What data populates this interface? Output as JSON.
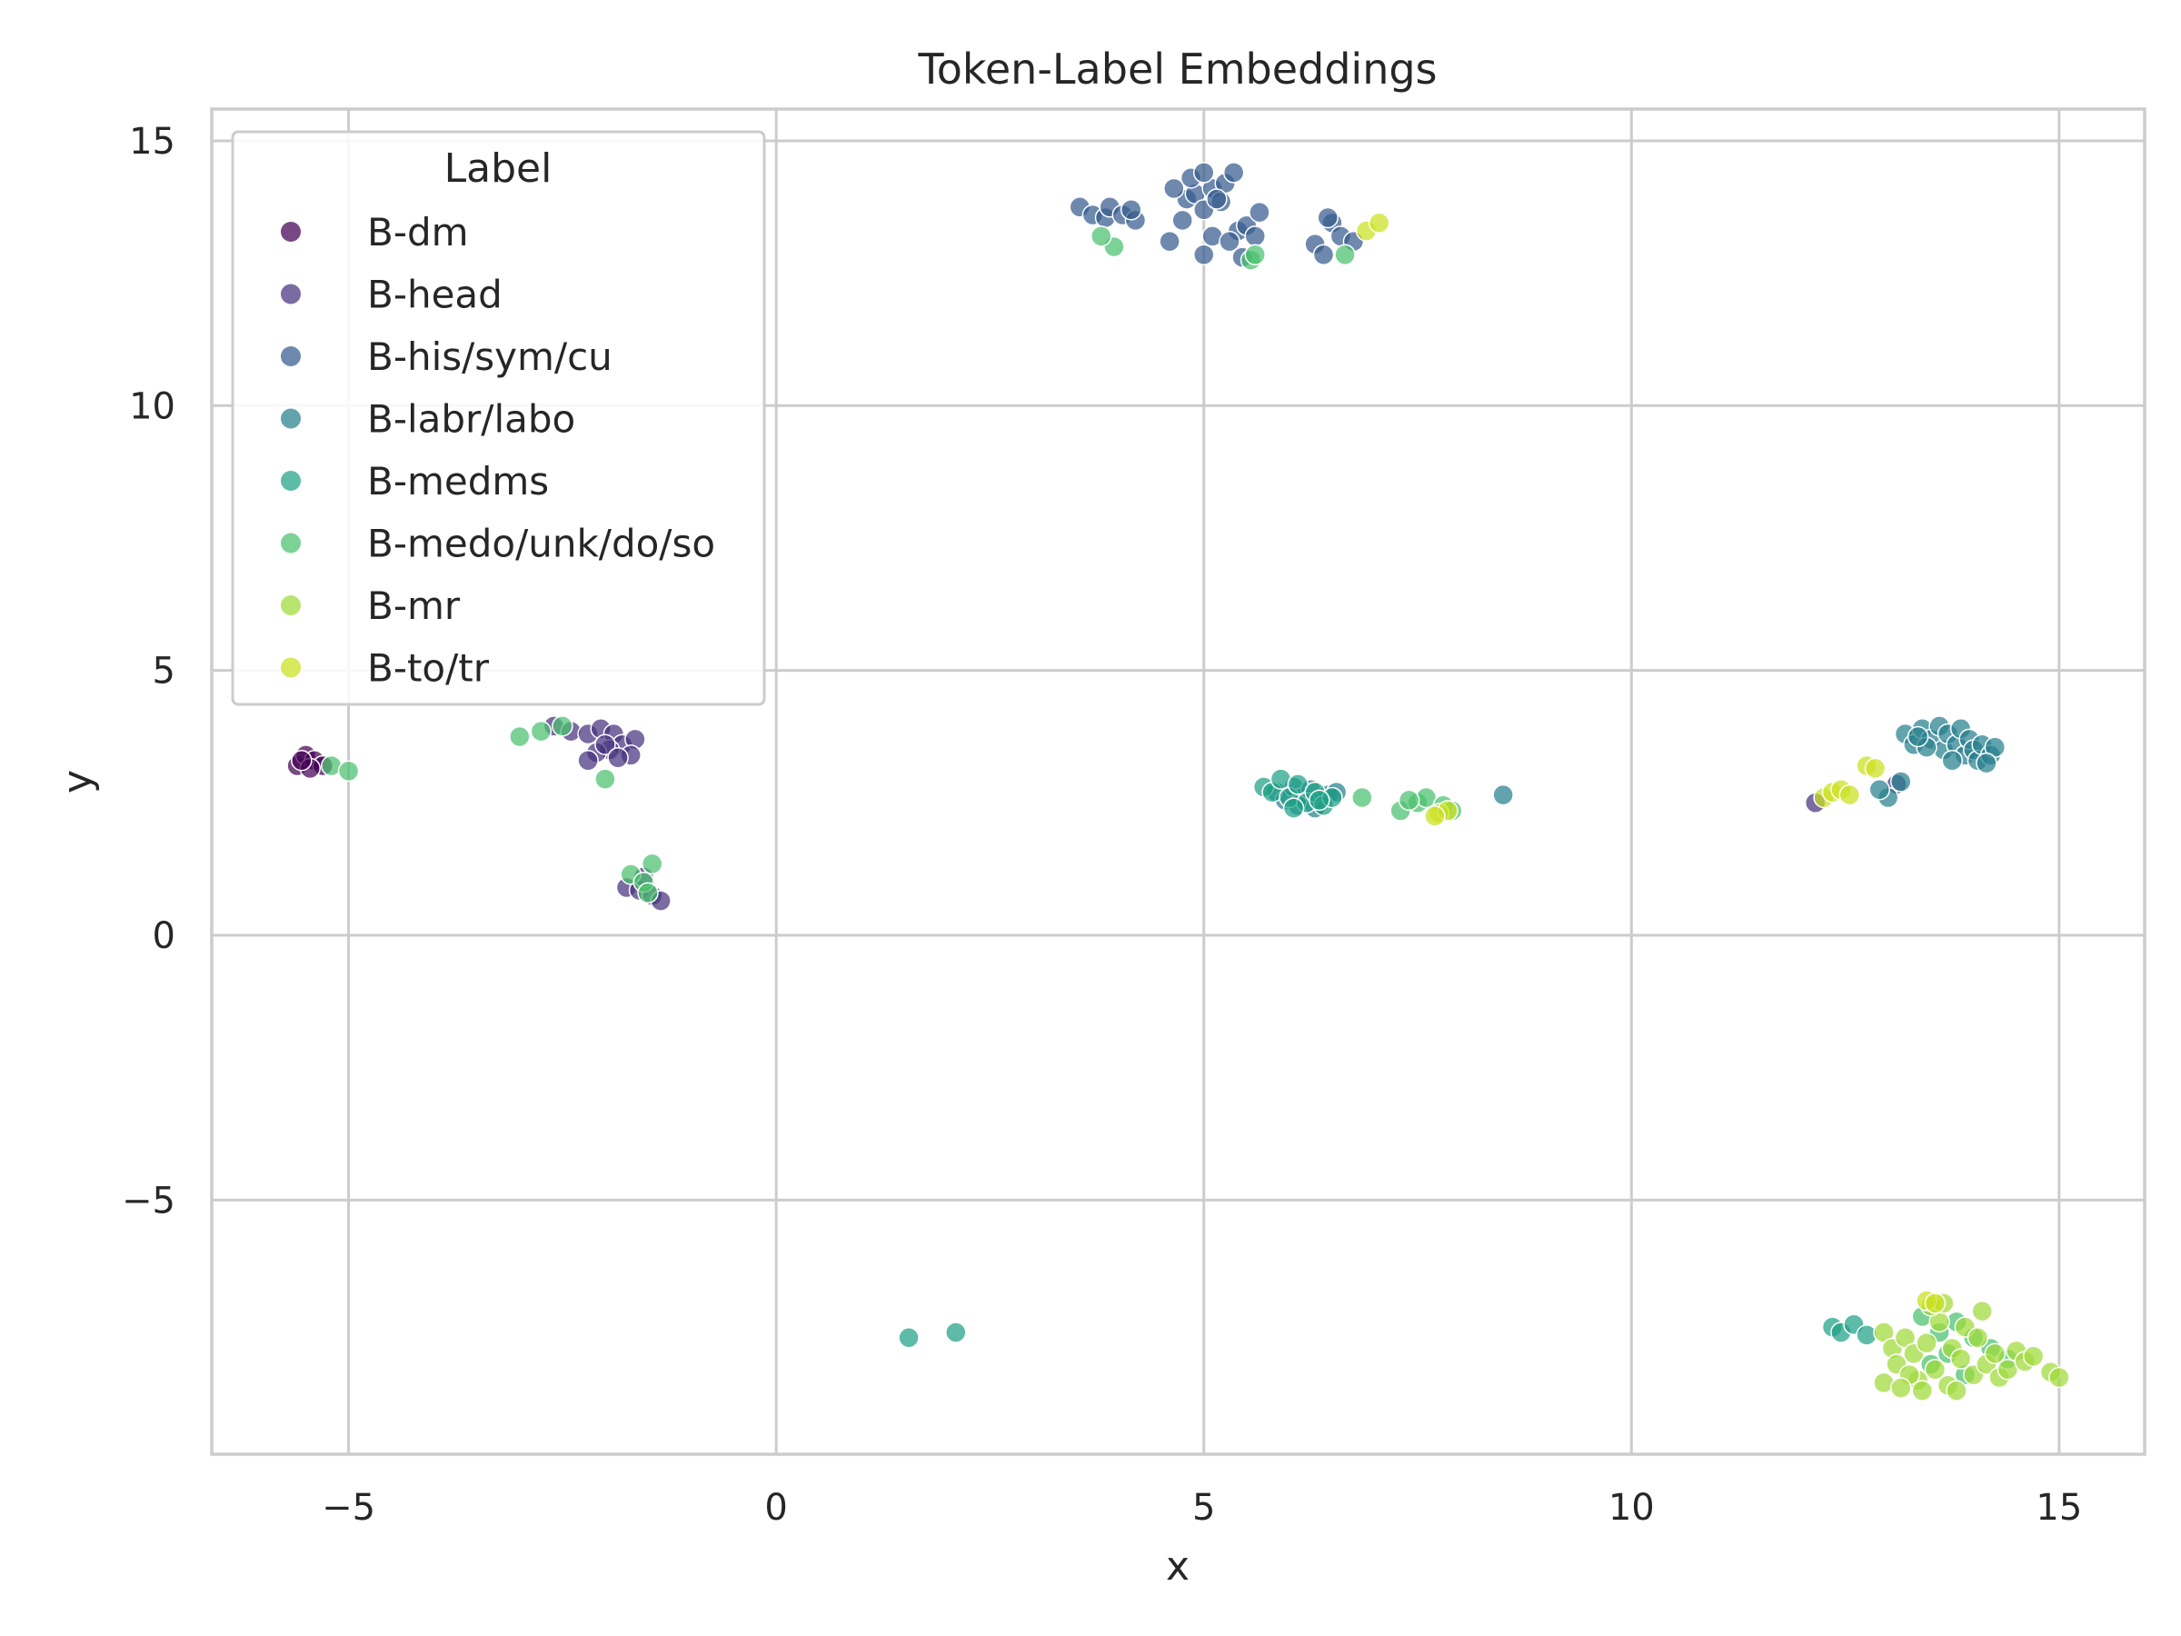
{
  "chart_data": {
    "type": "scatter",
    "title": "Token-Label Embeddings",
    "xlabel": "x",
    "ylabel": "y",
    "xlim": [
      -6.6,
      16.0
    ],
    "ylim": [
      -9.8,
      15.6
    ],
    "xticks": [
      -5,
      0,
      5,
      10,
      15
    ],
    "yticks": [
      -5,
      0,
      5,
      10,
      15
    ],
    "xtick_labels": [
      "−5",
      "0",
      "5",
      "10",
      "15"
    ],
    "ytick_labels": [
      "−5",
      "0",
      "5",
      "10",
      "15"
    ],
    "grid": true,
    "legend": {
      "title": "Label",
      "placement": "top-left"
    },
    "series": [
      {
        "name": "B-dm",
        "color": "#440154",
        "points": [
          [
            -5.6,
            3.2
          ],
          [
            -5.5,
            3.4
          ],
          [
            -5.4,
            3.3
          ],
          [
            -5.3,
            3.2
          ],
          [
            -5.45,
            3.15
          ],
          [
            -5.55,
            3.3
          ]
        ]
      },
      {
        "name": "B-head",
        "color": "#46327e",
        "points": [
          [
            -2.6,
            3.95
          ],
          [
            -2.4,
            3.85
          ],
          [
            -2.2,
            3.8
          ],
          [
            -2.05,
            3.9
          ],
          [
            -1.9,
            3.8
          ],
          [
            -1.8,
            3.6
          ],
          [
            -1.65,
            3.7
          ],
          [
            -1.7,
            3.4
          ],
          [
            -1.95,
            3.5
          ],
          [
            -2.1,
            3.45
          ],
          [
            -2.2,
            3.3
          ],
          [
            -2.0,
            3.6
          ],
          [
            -1.85,
            3.35
          ],
          [
            -1.75,
            0.9
          ],
          [
            -1.6,
            0.85
          ],
          [
            -1.45,
            0.75
          ],
          [
            -1.35,
            0.65
          ],
          [
            -1.55,
            1.1
          ],
          [
            12.15,
            2.5
          ],
          [
            13.1,
            2.85
          ]
        ]
      },
      {
        "name": "B-his/sym/cu",
        "color": "#365c8d",
        "points": [
          [
            3.55,
            13.75
          ],
          [
            3.7,
            13.6
          ],
          [
            3.85,
            13.55
          ],
          [
            3.9,
            13.75
          ],
          [
            4.05,
            13.6
          ],
          [
            4.2,
            13.5
          ],
          [
            4.15,
            13.7
          ],
          [
            4.6,
            13.1
          ],
          [
            4.75,
            13.5
          ],
          [
            4.8,
            13.9
          ],
          [
            4.9,
            14.0
          ],
          [
            5.0,
            13.7
          ],
          [
            5.1,
            14.1
          ],
          [
            5.2,
            13.85
          ],
          [
            5.25,
            14.2
          ],
          [
            5.35,
            14.4
          ],
          [
            5.4,
            13.3
          ],
          [
            5.5,
            13.4
          ],
          [
            5.6,
            13.2
          ],
          [
            5.65,
            13.65
          ],
          [
            5.0,
            12.85
          ],
          [
            5.1,
            13.2
          ],
          [
            5.3,
            13.1
          ],
          [
            5.45,
            12.8
          ],
          [
            4.65,
            14.1
          ],
          [
            4.85,
            14.3
          ],
          [
            5.0,
            14.4
          ],
          [
            5.15,
            13.9
          ],
          [
            6.3,
            13.05
          ],
          [
            6.4,
            12.85
          ],
          [
            6.5,
            13.45
          ],
          [
            6.6,
            13.2
          ],
          [
            6.75,
            13.1
          ],
          [
            6.45,
            13.55
          ]
        ]
      },
      {
        "name": "B-labr/labo",
        "color": "#277f8e",
        "points": [
          [
            13.2,
            3.8
          ],
          [
            13.3,
            3.6
          ],
          [
            13.4,
            3.9
          ],
          [
            13.5,
            3.7
          ],
          [
            13.6,
            3.95
          ],
          [
            13.65,
            3.5
          ],
          [
            13.7,
            3.8
          ],
          [
            13.8,
            3.6
          ],
          [
            13.85,
            3.9
          ],
          [
            13.9,
            3.4
          ],
          [
            13.95,
            3.7
          ],
          [
            14.0,
            3.5
          ],
          [
            14.05,
            3.3
          ],
          [
            14.1,
            3.6
          ],
          [
            14.2,
            3.4
          ],
          [
            14.25,
            3.55
          ],
          [
            13.45,
            3.55
          ],
          [
            13.35,
            3.75
          ],
          [
            13.75,
            3.3
          ],
          [
            14.15,
            3.25
          ],
          [
            13.0,
            2.6
          ],
          [
            12.9,
            2.75
          ],
          [
            13.15,
            2.9
          ],
          [
            8.5,
            2.65
          ],
          [
            5.85,
            2.7
          ],
          [
            5.95,
            2.55
          ],
          [
            6.05,
            2.8
          ],
          [
            6.15,
            2.6
          ],
          [
            6.25,
            2.75
          ],
          [
            6.35,
            2.5
          ],
          [
            6.45,
            2.65
          ],
          [
            6.55,
            2.7
          ],
          [
            6.1,
            2.45
          ],
          [
            6.3,
            2.4
          ]
        ]
      },
      {
        "name": "B-medms",
        "color": "#1fa187",
        "points": [
          [
            5.7,
            2.8
          ],
          [
            5.8,
            2.7
          ],
          [
            5.9,
            2.95
          ],
          [
            6.0,
            2.6
          ],
          [
            6.1,
            2.85
          ],
          [
            6.2,
            2.5
          ],
          [
            6.3,
            2.7
          ],
          [
            6.4,
            2.45
          ],
          [
            6.5,
            2.6
          ],
          [
            6.05,
            2.4
          ],
          [
            6.35,
            2.55
          ],
          [
            12.35,
            -7.4
          ],
          [
            12.45,
            -7.5
          ],
          [
            12.6,
            -7.35
          ],
          [
            12.75,
            -7.55
          ],
          [
            1.55,
            -7.6
          ],
          [
            2.1,
            -7.5
          ]
        ]
      },
      {
        "name": "B-medo/unk/do/so",
        "color": "#4ac16d",
        "points": [
          [
            -5.2,
            3.2
          ],
          [
            -5.0,
            3.1
          ],
          [
            -3.0,
            3.75
          ],
          [
            -2.75,
            3.85
          ],
          [
            -2.5,
            3.95
          ],
          [
            -2.0,
            2.95
          ],
          [
            -1.7,
            1.15
          ],
          [
            -1.55,
            1.0
          ],
          [
            -1.45,
            1.35
          ],
          [
            -1.5,
            0.8
          ],
          [
            3.95,
            13.0
          ],
          [
            3.8,
            13.2
          ],
          [
            5.55,
            12.75
          ],
          [
            5.6,
            12.85
          ],
          [
            6.65,
            12.85
          ],
          [
            6.85,
            2.6
          ],
          [
            7.3,
            2.35
          ],
          [
            7.5,
            2.5
          ],
          [
            7.6,
            2.6
          ],
          [
            7.8,
            2.45
          ],
          [
            7.9,
            2.35
          ],
          [
            7.4,
            2.55
          ],
          [
            13.4,
            -7.2
          ],
          [
            13.6,
            -7.5
          ],
          [
            13.8,
            -7.3
          ],
          [
            14.0,
            -7.6
          ],
          [
            13.7,
            -7.9
          ],
          [
            13.5,
            -8.1
          ],
          [
            14.2,
            -7.8
          ],
          [
            14.4,
            -8.0
          ],
          [
            13.9,
            -8.3
          ]
        ]
      },
      {
        "name": "B-mr",
        "color": "#a0da39",
        "points": [
          [
            12.95,
            -7.5
          ],
          [
            13.05,
            -7.8
          ],
          [
            13.1,
            -8.1
          ],
          [
            13.2,
            -7.6
          ],
          [
            13.3,
            -7.9
          ],
          [
            13.35,
            -8.4
          ],
          [
            13.45,
            -7.7
          ],
          [
            13.55,
            -8.2
          ],
          [
            13.6,
            -7.3
          ],
          [
            13.7,
            -8.5
          ],
          [
            13.75,
            -7.8
          ],
          [
            13.85,
            -8.0
          ],
          [
            13.9,
            -7.4
          ],
          [
            14.0,
            -8.3
          ],
          [
            14.05,
            -7.6
          ],
          [
            14.15,
            -8.1
          ],
          [
            14.25,
            -7.9
          ],
          [
            14.3,
            -8.35
          ],
          [
            14.4,
            -8.2
          ],
          [
            14.5,
            -7.85
          ],
          [
            14.6,
            -8.05
          ],
          [
            14.7,
            -7.95
          ],
          [
            14.9,
            -8.25
          ],
          [
            15.0,
            -8.35
          ],
          [
            13.25,
            -8.3
          ],
          [
            13.5,
            -7.0
          ],
          [
            13.65,
            -6.95
          ],
          [
            14.1,
            -7.1
          ],
          [
            12.95,
            -8.45
          ],
          [
            13.15,
            -8.55
          ],
          [
            13.4,
            -8.6
          ],
          [
            13.8,
            -8.6
          ]
        ]
      },
      {
        "name": "B-to/tr",
        "color": "#cae11f",
        "points": [
          [
            6.9,
            13.3
          ],
          [
            7.05,
            13.45
          ],
          [
            7.75,
            2.3
          ],
          [
            7.85,
            2.35
          ],
          [
            7.7,
            2.25
          ],
          [
            12.25,
            2.6
          ],
          [
            12.35,
            2.7
          ],
          [
            12.45,
            2.75
          ],
          [
            12.55,
            2.65
          ],
          [
            12.75,
            3.2
          ],
          [
            12.85,
            3.15
          ],
          [
            13.45,
            -6.9
          ],
          [
            13.55,
            -6.95
          ]
        ]
      }
    ]
  }
}
